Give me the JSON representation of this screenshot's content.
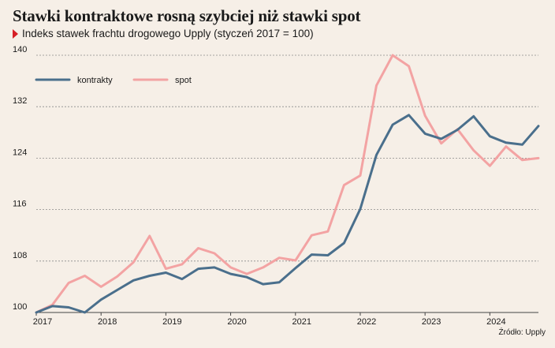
{
  "title": "Stawki kontraktowe rosną szybciej niż stawki spot",
  "subtitle": "Indeks stawek frachtu drogowego Upply (styczeń 2017 = 100)",
  "source": "Źródło: Upply",
  "colors": {
    "background": "#f6efe7",
    "kontrakty": "#4a6f8c",
    "spot": "#f3a3a3",
    "accent": "#d61f26",
    "grid": "#8a8a8a"
  },
  "chart_data": {
    "type": "line",
    "title": "Stawki kontraktowe rosną szybciej niż stawki spot",
    "subtitle": "Indeks stawek frachtu drogowego Upply (styczeń 2017 = 100)",
    "xlabel": "",
    "ylabel": "",
    "x": [
      "2017-Q1",
      "2017-Q2",
      "2017-Q3",
      "2017-Q4",
      "2018-Q1",
      "2018-Q2",
      "2018-Q3",
      "2018-Q4",
      "2019-Q1",
      "2019-Q2",
      "2019-Q3",
      "2019-Q4",
      "2020-Q1",
      "2020-Q2",
      "2020-Q3",
      "2020-Q4",
      "2021-Q1",
      "2021-Q2",
      "2021-Q3",
      "2021-Q4",
      "2022-Q1",
      "2022-Q2",
      "2022-Q3",
      "2022-Q4",
      "2023-Q1",
      "2023-Q2",
      "2023-Q3",
      "2023-Q4",
      "2024-Q1",
      "2024-Q2",
      "2024-Q3",
      "2024-Q4"
    ],
    "x_ticks": [
      "2017",
      "2018",
      "2019",
      "2020",
      "2021",
      "2022",
      "2023",
      "2024"
    ],
    "ylim": [
      100,
      140
    ],
    "y_ticks": [
      100,
      108,
      116,
      124,
      132,
      140
    ],
    "grid": true,
    "legend_position": "top-left",
    "series": [
      {
        "name": "kontrakty",
        "values": [
          100,
          101,
          100.8,
          100,
          102,
          103.5,
          105,
          105.7,
          106.2,
          105.2,
          106.8,
          107,
          106,
          105.5,
          104.4,
          104.7,
          106.9,
          109,
          108.9,
          110.8,
          116.1,
          124.5,
          129.2,
          130.7,
          127.8,
          127,
          128.4,
          130.5,
          127.4,
          126.4,
          126.1,
          129
        ]
      },
      {
        "name": "spot",
        "values": [
          100,
          101.2,
          104.6,
          105.7,
          104,
          105.6,
          107.8,
          111.9,
          106.8,
          107.5,
          110,
          109.2,
          107,
          106,
          107,
          108.5,
          108.1,
          112,
          112.6,
          119.8,
          121.3,
          135.3,
          140,
          138.3,
          130.6,
          126.3,
          128.5,
          125.2,
          122.8,
          125.8,
          123.7,
          124
        ]
      }
    ]
  }
}
